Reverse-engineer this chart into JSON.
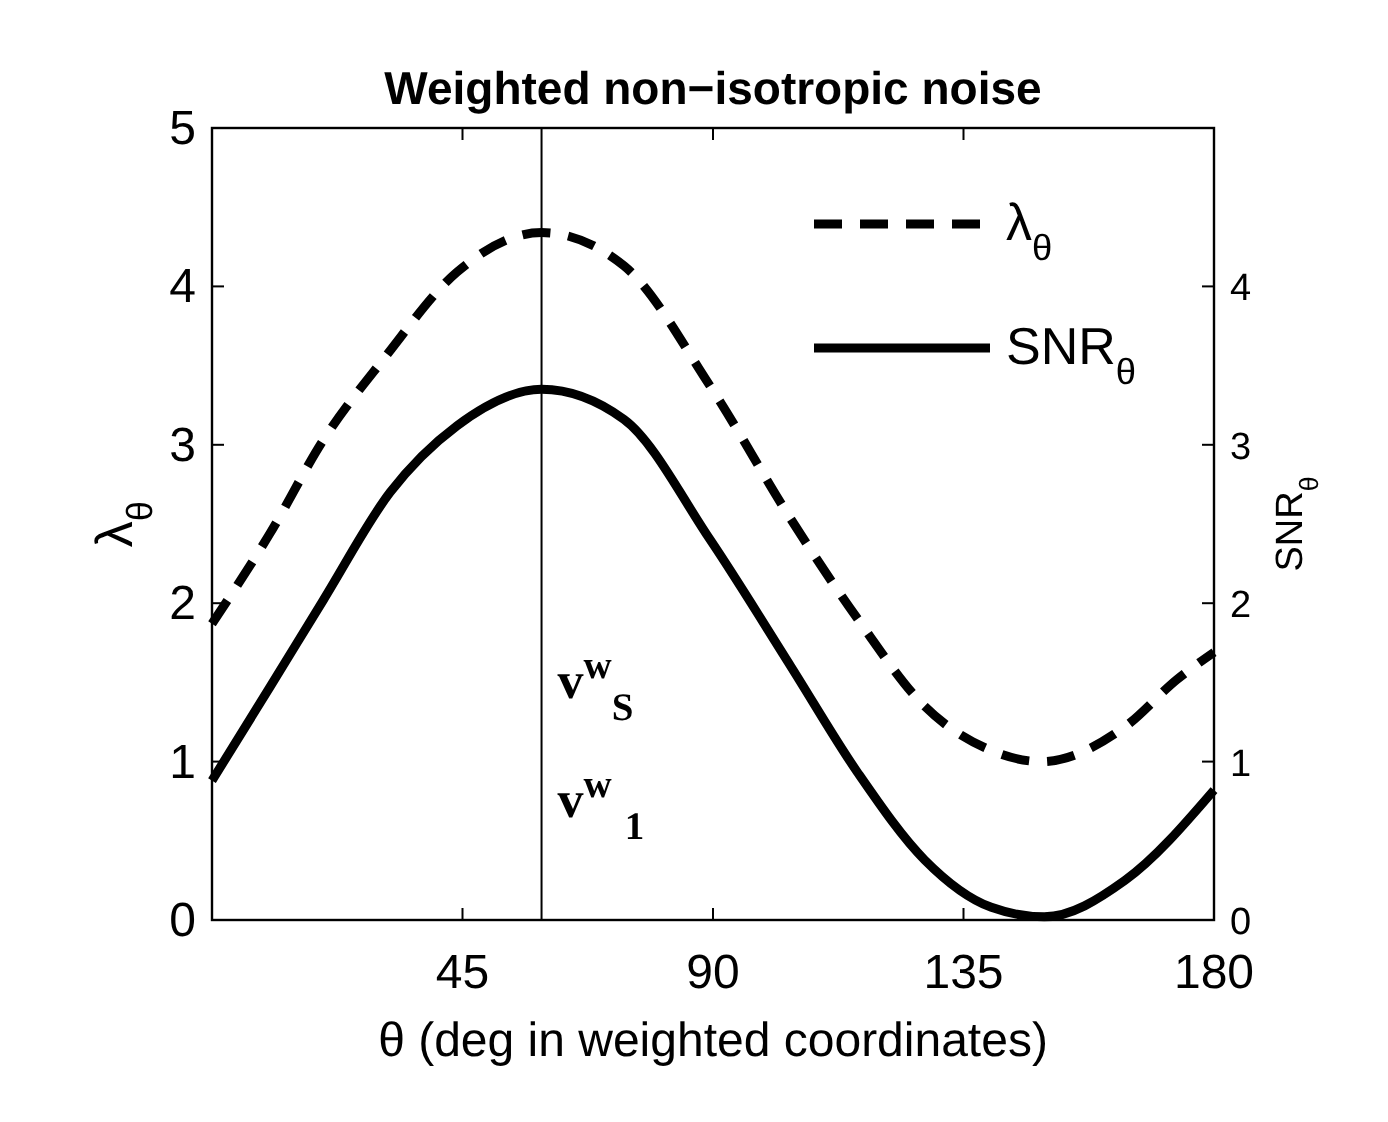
{
  "chart_data": {
    "type": "line",
    "title": "Weighted non−isotropic noise",
    "xlabel": "θ (deg in weighted coordinates)",
    "ylabel": "λ$_{θ}$",
    "y2label": "SNR$_{θ}$",
    "xlim": [
      0,
      180
    ],
    "xticks": [
      {
        "value": 0,
        "label": null
      },
      45,
      90,
      135,
      180
    ],
    "ylim": [
      0,
      5
    ],
    "yticks": [
      0,
      1,
      2,
      3,
      4,
      5
    ],
    "y2lim": [
      0,
      5
    ],
    "y2ticks": [
      0,
      1,
      2,
      3,
      4
    ],
    "legend": "top right",
    "grid": false,
    "series": [
      {
        "name": "λ$_{θ}$",
        "color": "#000000",
        "line_style": "dashed",
        "x": [
          0,
          10.4,
          20,
          30.8,
          44,
          59.2,
          74,
          89.5,
          104,
          116,
          128,
          140,
          149,
          164,
          173.4,
          180
        ],
        "values": [
          1.87,
          2.44,
          3.03,
          3.54,
          4.09,
          4.34,
          4.13,
          3.37,
          2.53,
          1.9,
          1.35,
          1.07,
          1.0,
          1.22,
          1.52,
          1.69
        ]
      },
      {
        "name": "SNR$_{θ}$",
        "color": "#000000",
        "line_style": "solid",
        "x": [
          0,
          10.4,
          20,
          32,
          44,
          59.2,
          74,
          89.5,
          104,
          116,
          128,
          140,
          149.5,
          164,
          180
        ],
        "values": [
          0.88,
          1.47,
          2.02,
          2.7,
          3.12,
          3.35,
          3.16,
          2.4,
          1.6,
          0.93,
          0.38,
          0.08,
          0.02,
          0.25,
          0.82
        ]
      }
    ],
    "ref_lines": [
      {
        "axis": "x",
        "value": 59.2,
        "color": "#000000"
      }
    ],
    "annotations": [
      {
        "text": "v$^{w}$$_{S}$",
        "x": 59.2,
        "y": 1.5
      },
      {
        "text": "v$^{w}$ $_{1}$",
        "x": 59.2,
        "y": 0.75
      }
    ]
  }
}
